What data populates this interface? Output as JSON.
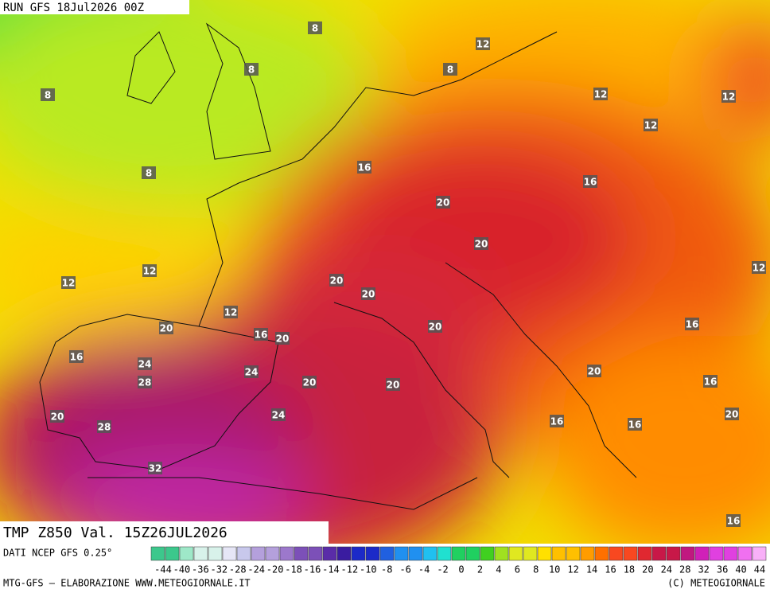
{
  "header": {
    "run": "RUN GFS 18Jul2026 00Z"
  },
  "map": {
    "labels": [
      8,
      12,
      8,
      8,
      8,
      12,
      12,
      12,
      16,
      8,
      16,
      20,
      20,
      12,
      12,
      12,
      20,
      20,
      12,
      20,
      16,
      20,
      20,
      16,
      16,
      24,
      28,
      24,
      20,
      20,
      20,
      16,
      20,
      28,
      24,
      16,
      16,
      20,
      32,
      16
    ]
  },
  "footer": {
    "field": "TMP Z850 Val. 15Z26JUL2026",
    "source": "DATI NCEP GFS 0.25°",
    "credit": "MTG-GFS — ELABORAZIONE WWW.METEOGIORNALE.IT",
    "copyright": "(C) METEOGIORNALE"
  },
  "colorbar": {
    "labels": [
      -44,
      -40,
      -36,
      -32,
      -28,
      -24,
      -20,
      -18,
      -16,
      -14,
      -12,
      -10,
      -8,
      -6,
      -4,
      -2,
      0,
      2,
      4,
      6,
      8,
      10,
      12,
      14,
      16,
      18,
      20,
      24,
      28,
      32,
      36,
      40,
      44
    ]
  }
}
